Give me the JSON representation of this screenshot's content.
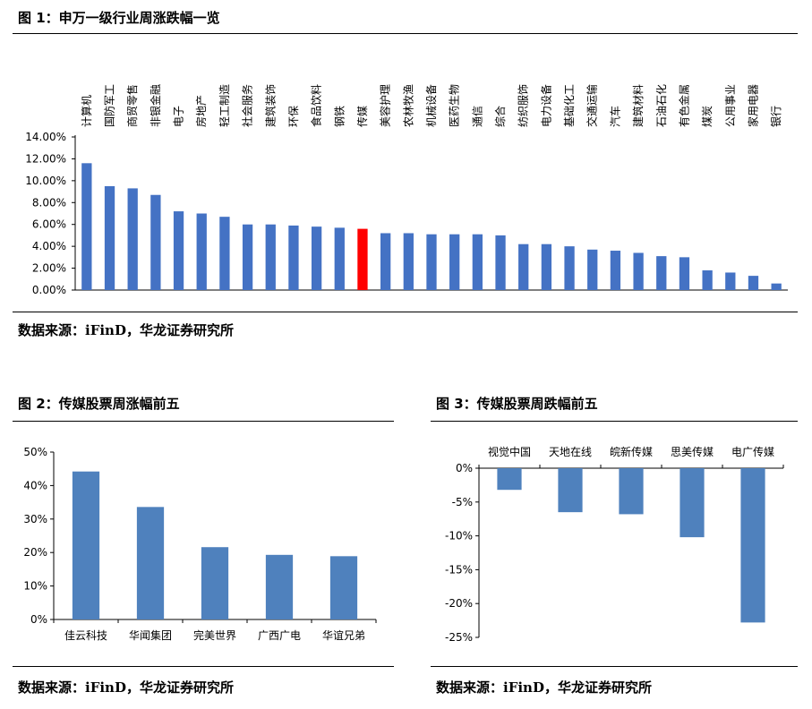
{
  "figures": [
    {
      "title": "图 1：申万一级行业周涨跌幅一览",
      "source": "数据来源：iFinD，华龙证券研究所"
    },
    {
      "title": "图 2：传媒股票周涨幅前五",
      "source": "数据来源：iFinD，华龙证券研究所"
    },
    {
      "title": "图 3：传媒股票周跌幅前五",
      "source": "数据来源：iFinD，华龙证券研究所"
    }
  ],
  "colors": {
    "bar": "#4472c4",
    "highlight": "#ff0000",
    "bar_small": "#4f81bd"
  },
  "chart_data": [
    {
      "type": "bar",
      "categories": [
        "计算机",
        "国防军工",
        "商贸零售",
        "非银金融",
        "电子",
        "房地产",
        "轻工制造",
        "社会服务",
        "建筑装饰",
        "环保",
        "食品饮料",
        "钢铁",
        "传媒",
        "美容护理",
        "农林牧渔",
        "机械设备",
        "医药生物",
        "通信",
        "综合",
        "纺织服饰",
        "电力设备",
        "基础化工",
        "交通运输",
        "汽车",
        "建筑材料",
        "石油石化",
        "有色金属",
        "煤炭",
        "公用事业",
        "家用电器",
        "银行"
      ],
      "values": [
        11.6,
        9.5,
        9.3,
        8.7,
        7.2,
        7.0,
        6.7,
        6.0,
        6.0,
        5.9,
        5.8,
        5.7,
        5.6,
        5.2,
        5.2,
        5.1,
        5.1,
        5.1,
        5.0,
        4.2,
        4.2,
        4.0,
        3.7,
        3.6,
        3.4,
        3.1,
        3.0,
        1.8,
        1.6,
        1.3,
        0.6
      ],
      "highlight_category": "传媒",
      "yticks": [
        "0.00%",
        "2.00%",
        "4.00%",
        "6.00%",
        "8.00%",
        "10.00%",
        "12.00%",
        "14.00%"
      ],
      "ylim": [
        0,
        14
      ],
      "unit": "%"
    },
    {
      "type": "bar",
      "categories": [
        "佳云科技",
        "华闻集团",
        "完美世界",
        "广西广电",
        "华谊兄弟"
      ],
      "values": [
        44.2,
        33.6,
        21.6,
        19.3,
        18.9
      ],
      "yticks": [
        "0%",
        "10%",
        "20%",
        "30%",
        "40%",
        "50%"
      ],
      "ylim": [
        0,
        50
      ],
      "unit": "%"
    },
    {
      "type": "bar",
      "categories": [
        "视觉中国",
        "天地在线",
        "皖新传媒",
        "思美传媒",
        "电广传媒"
      ],
      "values": [
        -3.2,
        -6.5,
        -6.8,
        -10.2,
        -22.8
      ],
      "yticks": [
        "0%",
        "-5%",
        "-10%",
        "-15%",
        "-20%",
        "-25%"
      ],
      "ylim": [
        -25,
        0
      ],
      "unit": "%"
    }
  ]
}
